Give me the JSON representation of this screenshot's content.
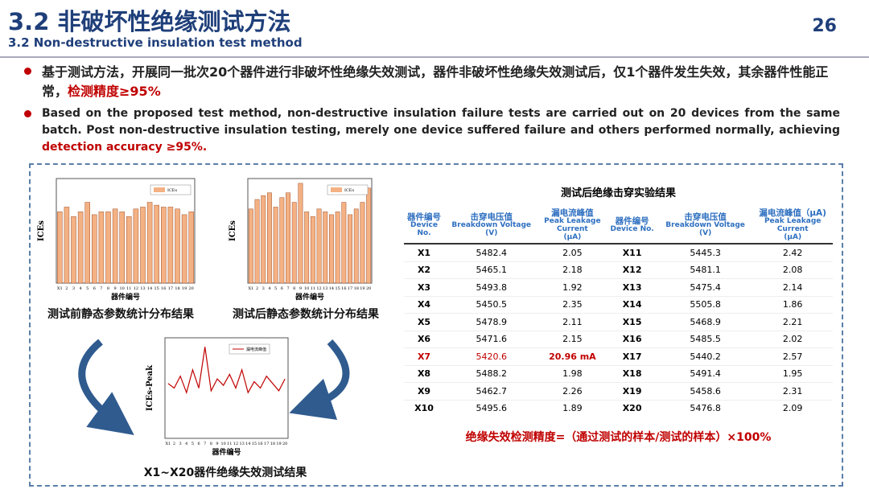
{
  "header": {
    "title": "3.2 非破坏性绝缘测试方法",
    "subtitle": "3.2  Non-destructive insulation test method",
    "page": "26"
  },
  "bullets": [
    {
      "text": "基于测试方法，开展同一批次20个器件进行非破坏性绝缘失效测试，器件非破坏性绝缘失效测试后，仅1个器件发生失效，其余器件性能正常，",
      "highlight": "检测精度≥95%"
    },
    {
      "text": "Based on the proposed test method, non-destructive insulation failure tests are carried out on 20 devices from the same batch. Post non-destructive insulation testing, merely one device suffered failure and others performed normally, achieving ",
      "highlight": "detection accuracy ≥95%."
    }
  ],
  "charts": [
    {
      "type": "bar",
      "y_label": "ICEs",
      "x_label": "器件编号",
      "caption": "测试前静态参数统计分布结果",
      "categories": [
        "X1",
        "2",
        "3",
        "4",
        "5",
        "6",
        "7",
        "8",
        "9",
        "10",
        "11",
        "12",
        "13",
        "14",
        "15",
        "16",
        "17",
        "18",
        "19",
        "20"
      ],
      "series": [
        {
          "name": "ICEs",
          "color": "#f4b183",
          "values": [
            0.75,
            0.8,
            0.7,
            0.75,
            0.85,
            0.72,
            0.75,
            0.75,
            0.78,
            0.75,
            0.7,
            0.78,
            0.8,
            0.85,
            0.82,
            0.8,
            0.8,
            0.78,
            0.72,
            0.75
          ]
        }
      ],
      "ylim": [
        0,
        1.1
      ]
    },
    {
      "type": "bar",
      "y_label": "ICEs",
      "x_label": "器件编号",
      "caption": "测试后静态参数统计分布结果",
      "categories": [
        "X1",
        "2",
        "3",
        "4",
        "5",
        "6",
        "7",
        "8",
        "9",
        "10",
        "11",
        "12",
        "13",
        "14",
        "15",
        "16",
        "17",
        "18",
        "19",
        "20"
      ],
      "series": [
        {
          "name": "ICEs",
          "color": "#f4b183",
          "values": [
            0.78,
            0.88,
            0.92,
            0.95,
            0.8,
            0.9,
            0.95,
            0.85,
            1.05,
            0.75,
            0.7,
            0.78,
            0.75,
            0.72,
            0.75,
            0.85,
            0.72,
            0.78,
            0.85,
            1.0
          ]
        }
      ],
      "ylim": [
        0,
        1.1
      ]
    },
    {
      "type": "line",
      "y_label": "ICEs-Peak",
      "x_label": "器件编号",
      "caption": "X1~X20器件绝缘失效测试结果",
      "categories": [
        "X1",
        "2",
        "3",
        "4",
        "5",
        "6",
        "7",
        "8",
        "9",
        "10",
        "11",
        "12",
        "13",
        "14",
        "15",
        "16",
        "17",
        "18",
        "19",
        "20"
      ],
      "series": [
        {
          "name": "漏电流峰值",
          "color": "#c00000",
          "values": [
            60,
            55,
            68,
            50,
            75,
            55,
            100,
            52,
            65,
            58,
            70,
            55,
            75,
            50,
            62,
            55,
            68,
            60,
            52,
            65
          ]
        }
      ],
      "ylim": [
        0,
        110
      ]
    }
  ],
  "table": {
    "title": "测试后绝缘击穿实验结果",
    "headers": [
      [
        "器件编号",
        "Device",
        "No."
      ],
      [
        "击穿电压值",
        "Breakdown Voltage",
        "(V)"
      ],
      [
        "漏电流峰值",
        "Peak Leakage",
        "Current",
        "(μA)"
      ],
      [
        "器件编号",
        "Device No."
      ],
      [
        "击穿电压值",
        "Breakdown Voltage",
        "(V)"
      ],
      [
        "漏电流峰值（μA)",
        "Peak Leakage",
        "Current",
        "(μA)"
      ]
    ],
    "rows": [
      [
        "X1",
        "5482.4",
        "2.05",
        "X11",
        "5445.3",
        "2.42"
      ],
      [
        "X2",
        "5465.1",
        "2.18",
        "X12",
        "5481.1",
        "2.08"
      ],
      [
        "X3",
        "5493.8",
        "1.92",
        "X13",
        "5475.4",
        "2.14"
      ],
      [
        "X4",
        "5450.5",
        "2.35",
        "X14",
        "5505.8",
        "1.86"
      ],
      [
        "X5",
        "5478.9",
        "2.11",
        "X15",
        "5468.9",
        "2.21"
      ],
      [
        "X6",
        "5471.6",
        "2.15",
        "X16",
        "5485.5",
        "2.02"
      ],
      [
        "X7",
        "5420.6",
        "20.96 mA",
        "X17",
        "5440.2",
        "2.57"
      ],
      [
        "X8",
        "5488.2",
        "1.98",
        "X18",
        "5491.4",
        "1.95"
      ],
      [
        "X9",
        "5462.7",
        "2.26",
        "X19",
        "5458.6",
        "2.31"
      ],
      [
        "X10",
        "5495.6",
        "1.89",
        "X20",
        "5476.8",
        "2.09"
      ]
    ],
    "highlight_row": 6
  },
  "formula": "绝缘失效检测精度=（通过测试的样本/测试的样本）×100%"
}
